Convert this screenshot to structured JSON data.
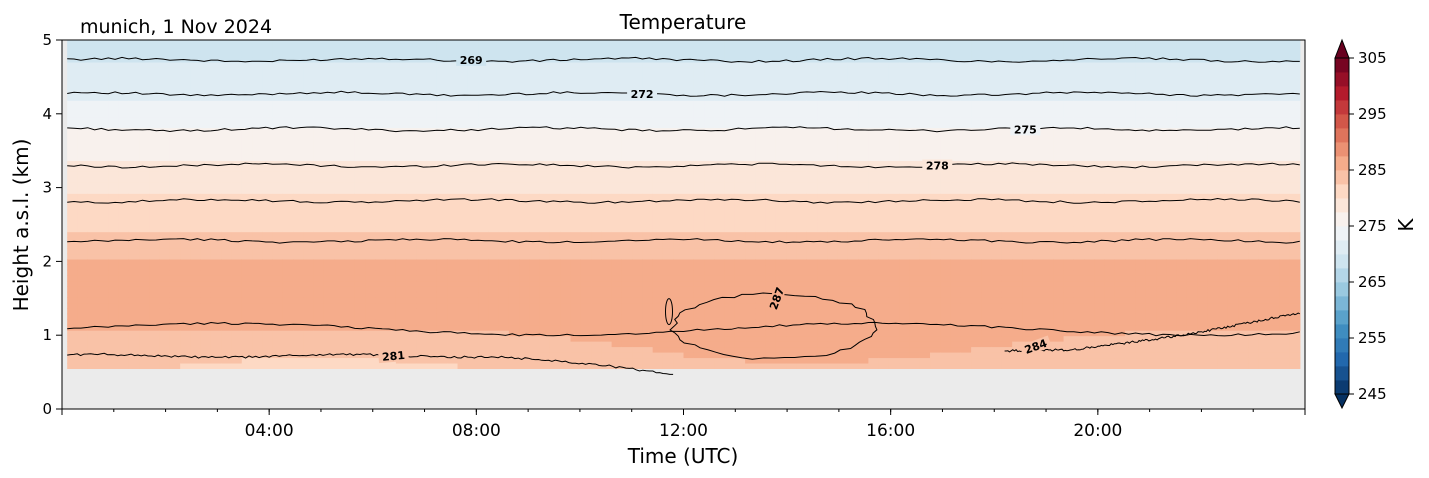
{
  "chart_data": {
    "type": "heatmap",
    "title": "Temperature",
    "location_label": "munich, 1 Nov 2024",
    "xlabel": "Time (UTC)",
    "ylabel": "Height a.s.l. (km)",
    "xlim_hours": [
      0,
      24
    ],
    "ylim": [
      0,
      5
    ],
    "x_ticks": [
      {
        "hour": 4,
        "label": "04:00"
      },
      {
        "hour": 8,
        "label": "08:00"
      },
      {
        "hour": 12,
        "label": "12:00"
      },
      {
        "hour": 16,
        "label": "16:00"
      },
      {
        "hour": 20,
        "label": "20:00"
      }
    ],
    "y_ticks": [
      {
        "value": 0,
        "label": "0"
      },
      {
        "value": 1,
        "label": "1"
      },
      {
        "value": 2,
        "label": "2"
      },
      {
        "value": 3,
        "label": "3"
      },
      {
        "value": 4,
        "label": "4"
      },
      {
        "value": 5,
        "label": "5"
      }
    ],
    "data_valid_range": {
      "time_hours": [
        0.1,
        23.9
      ],
      "height_km": [
        0.55,
        5.0
      ]
    },
    "missing_data_color": "#ebebeb",
    "colorbar": {
      "label": "K",
      "colormap": "RdBu_r",
      "range": [
        245,
        305
      ],
      "ticks": [
        245,
        255,
        265,
        275,
        285,
        295,
        305
      ],
      "extend": "both"
    },
    "temperature_profile": {
      "description_levels_km": [
        0.55,
        1.0,
        1.5,
        2.0,
        2.5,
        3.0,
        3.5,
        4.0,
        4.5,
        5.0
      ],
      "approx_kelvin": [
        283.5,
        285,
        286,
        285,
        282,
        279.5,
        277,
        273.5,
        271,
        268
      ]
    },
    "contours": [
      {
        "level": 269,
        "height_km": 4.73,
        "label_hour": 7.9
      },
      {
        "level": 272,
        "height_km": 4.27,
        "label_hour": 11.2
      },
      {
        "level": 275,
        "height_km": 3.79,
        "label_hour": 18.6
      },
      {
        "level": 278,
        "height_km": 3.3,
        "label_hour": 16.9
      },
      {
        "level": 281,
        "height_km": 2.82,
        "label_hour": null
      },
      {
        "level": 281,
        "height_km": 2.28,
        "label_hour": null
      },
      {
        "level": 284,
        "height_km": 1.08,
        "label_hour": null
      },
      {
        "level": 281,
        "height_km": 0.72,
        "label_hour": 6.4
      },
      {
        "level": 284,
        "height_km": 0.78,
        "label_hour": 18.8
      },
      {
        "level": 287,
        "height_km": 1.1,
        "label_hour": 13.8
      }
    ],
    "contour_labels": [
      "269",
      "272",
      "275",
      "278",
      "281",
      "284",
      "287"
    ]
  }
}
